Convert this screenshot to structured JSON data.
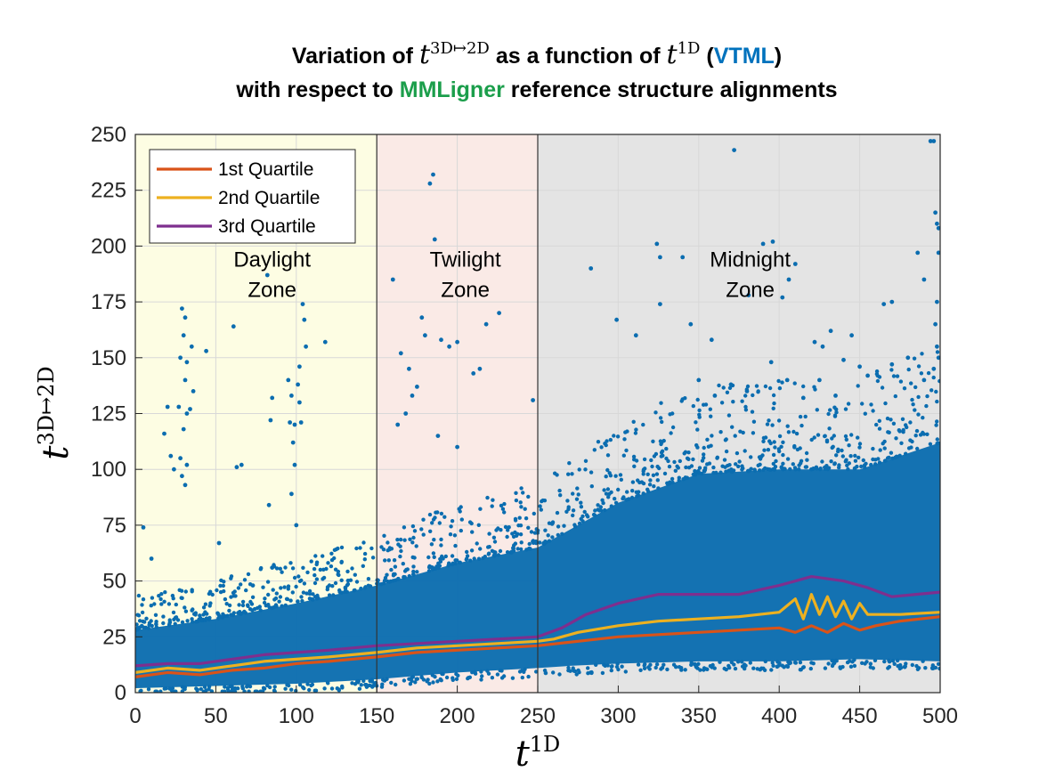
{
  "title": {
    "line1_prefix": "Variation of",
    "line1_var1": "t",
    "line1_var1_sup": "3D↦2D",
    "line1_middle": "as a function of",
    "line1_var2": "t",
    "line1_var2_sup": "1D",
    "line1_paren_open": "(",
    "line1_method": "VTML",
    "line1_paren_close": ")",
    "line2_prefix": "with respect to",
    "line2_tool": "MMLigner",
    "line2_suffix": "reference structure alignments",
    "method_color": "#0072bd",
    "tool_color": "#1b9e4b"
  },
  "chart_data": {
    "type": "scatter",
    "xlabel": "t",
    "xlabel_sup": "1D",
    "ylabel": "t",
    "ylabel_sup": "3D↦2D",
    "xlim": [
      0,
      500
    ],
    "ylim": [
      0,
      250
    ],
    "x_ticks": [
      0,
      50,
      100,
      150,
      200,
      250,
      300,
      350,
      400,
      450,
      500
    ],
    "y_ticks": [
      0,
      25,
      50,
      75,
      100,
      125,
      150,
      175,
      200,
      225,
      250
    ],
    "grid": true,
    "zones": [
      {
        "label_line1": "Daylight",
        "label_line2": "Zone",
        "x_range": [
          0,
          150
        ],
        "color": "#fdfde3",
        "label_x": 85,
        "label_y": 194
      },
      {
        "label_line1": "Twilight",
        "label_line2": "Zone",
        "x_range": [
          150,
          250
        ],
        "color": "#faeae6",
        "label_x": 205,
        "label_y": 194
      },
      {
        "label_line1": "Midnight",
        "label_line2": "Zone",
        "x_range": [
          250,
          500
        ],
        "color": "#e4e4e4",
        "label_x": 382,
        "label_y": 194
      }
    ],
    "scatter_color": "#0b6db0",
    "scatter_band": {
      "x": [
        0,
        50,
        100,
        150,
        200,
        250,
        270,
        300,
        350,
        400,
        450,
        500
      ],
      "lower": [
        2,
        3,
        4,
        6,
        9,
        11,
        12,
        13,
        14,
        14,
        15,
        14
      ],
      "upper": [
        28,
        33,
        40,
        48,
        58,
        65,
        73,
        85,
        98,
        100,
        100,
        112
      ]
    },
    "scatter_outliers": [
      [
        29,
        172
      ],
      [
        31,
        168
      ],
      [
        30,
        160
      ],
      [
        28,
        150
      ],
      [
        32,
        148
      ],
      [
        31,
        140
      ],
      [
        27,
        128
      ],
      [
        32,
        125
      ],
      [
        30,
        118
      ],
      [
        28,
        105
      ],
      [
        29,
        97
      ],
      [
        31,
        93
      ],
      [
        32,
        102
      ],
      [
        34,
        127
      ],
      [
        35,
        155
      ],
      [
        36,
        135
      ],
      [
        20,
        128
      ],
      [
        22,
        106
      ],
      [
        18,
        116
      ],
      [
        24,
        100
      ],
      [
        44,
        153
      ],
      [
        61,
        164
      ],
      [
        63,
        101
      ],
      [
        66,
        102
      ],
      [
        52,
        67
      ],
      [
        83,
        84
      ],
      [
        85,
        56
      ],
      [
        95,
        140
      ],
      [
        97,
        133
      ],
      [
        96,
        121
      ],
      [
        98,
        112
      ],
      [
        99,
        102
      ],
      [
        97,
        89
      ],
      [
        100,
        75
      ],
      [
        101,
        138
      ],
      [
        102,
        130
      ],
      [
        103,
        121
      ],
      [
        104,
        174
      ],
      [
        105,
        167
      ],
      [
        106,
        155
      ],
      [
        102,
        146
      ],
      [
        99,
        120
      ],
      [
        118,
        157
      ],
      [
        84,
        122
      ],
      [
        85,
        132
      ],
      [
        82,
        187
      ],
      [
        5,
        74
      ],
      [
        10,
        60
      ],
      [
        73,
        48
      ],
      [
        160,
        185
      ],
      [
        165,
        152
      ],
      [
        170,
        145
      ],
      [
        175,
        137
      ],
      [
        178,
        168
      ],
      [
        183,
        228
      ],
      [
        185,
        232
      ],
      [
        186,
        203
      ],
      [
        190,
        158
      ],
      [
        180,
        160
      ],
      [
        195,
        155
      ],
      [
        200,
        157
      ],
      [
        210,
        143
      ],
      [
        214,
        145
      ],
      [
        218,
        165
      ],
      [
        226,
        170
      ],
      [
        247,
        131
      ],
      [
        172,
        133
      ],
      [
        168,
        125
      ],
      [
        188,
        115
      ],
      [
        200,
        110
      ],
      [
        163,
        120
      ],
      [
        283,
        190
      ],
      [
        299,
        167
      ],
      [
        311,
        160
      ],
      [
        324,
        201
      ],
      [
        326,
        174
      ],
      [
        326,
        195
      ],
      [
        340,
        195
      ],
      [
        345,
        165
      ],
      [
        350,
        140
      ],
      [
        358,
        158
      ],
      [
        372,
        243
      ],
      [
        381,
        178
      ],
      [
        390,
        201
      ],
      [
        396,
        202
      ],
      [
        402,
        177
      ],
      [
        406,
        185
      ],
      [
        410,
        192
      ],
      [
        422,
        157
      ],
      [
        427,
        155
      ],
      [
        432,
        162
      ],
      [
        440,
        149
      ],
      [
        445,
        160
      ],
      [
        450,
        146
      ],
      [
        465,
        174
      ],
      [
        470,
        175
      ],
      [
        486,
        197
      ],
      [
        490,
        185
      ],
      [
        494,
        247
      ],
      [
        496,
        247
      ],
      [
        497,
        215
      ],
      [
        498,
        210
      ],
      [
        499,
        208
      ],
      [
        499,
        197
      ],
      [
        498,
        175
      ],
      [
        497,
        165
      ],
      [
        498,
        155
      ],
      [
        499,
        150
      ],
      [
        496,
        145
      ],
      [
        360,
        133
      ],
      [
        370,
        138
      ],
      [
        380,
        135
      ],
      [
        395,
        148
      ],
      [
        405,
        140
      ],
      [
        415,
        132
      ],
      [
        425,
        140
      ],
      [
        435,
        133
      ],
      [
        455,
        142
      ],
      [
        470,
        147
      ],
      [
        480,
        150
      ],
      [
        490,
        140
      ]
    ],
    "series": [
      {
        "name": "1st Quartile",
        "color": "#d95319",
        "x": [
          0,
          20,
          40,
          60,
          80,
          100,
          120,
          150,
          175,
          200,
          225,
          250,
          275,
          300,
          325,
          350,
          375,
          400,
          410,
          420,
          430,
          440,
          450,
          460,
          475,
          500
        ],
        "y": [
          7,
          9,
          8,
          10,
          11,
          13,
          14,
          16,
          18,
          19,
          20,
          21,
          23,
          25,
          26,
          27,
          28,
          29,
          27,
          30,
          27,
          31,
          28,
          30,
          32,
          34
        ]
      },
      {
        "name": "2nd Quartile",
        "color": "#edb120",
        "x": [
          0,
          20,
          40,
          60,
          80,
          100,
          120,
          150,
          175,
          200,
          225,
          250,
          260,
          275,
          300,
          325,
          350,
          375,
          400,
          410,
          415,
          420,
          425,
          430,
          435,
          440,
          445,
          450,
          455,
          460,
          475,
          500
        ],
        "y": [
          9,
          11,
          10,
          12,
          14,
          15,
          16,
          18,
          20,
          21,
          22,
          23,
          24,
          27,
          30,
          32,
          33,
          34,
          36,
          42,
          33,
          44,
          35,
          43,
          34,
          41,
          33,
          40,
          35,
          35,
          35,
          36
        ]
      },
      {
        "name": "3rd Quartile",
        "color": "#7e2f8e",
        "x": [
          0,
          20,
          40,
          60,
          80,
          100,
          120,
          150,
          175,
          200,
          225,
          250,
          265,
          280,
          300,
          325,
          350,
          375,
          400,
          420,
          440,
          455,
          470,
          485,
          500
        ],
        "y": [
          12,
          13,
          13,
          15,
          17,
          18,
          19,
          21,
          22,
          23,
          24,
          25,
          29,
          35,
          40,
          44,
          44,
          44,
          48,
          52,
          50,
          47,
          43,
          44,
          45
        ]
      }
    ],
    "legend_position": "top-left"
  }
}
